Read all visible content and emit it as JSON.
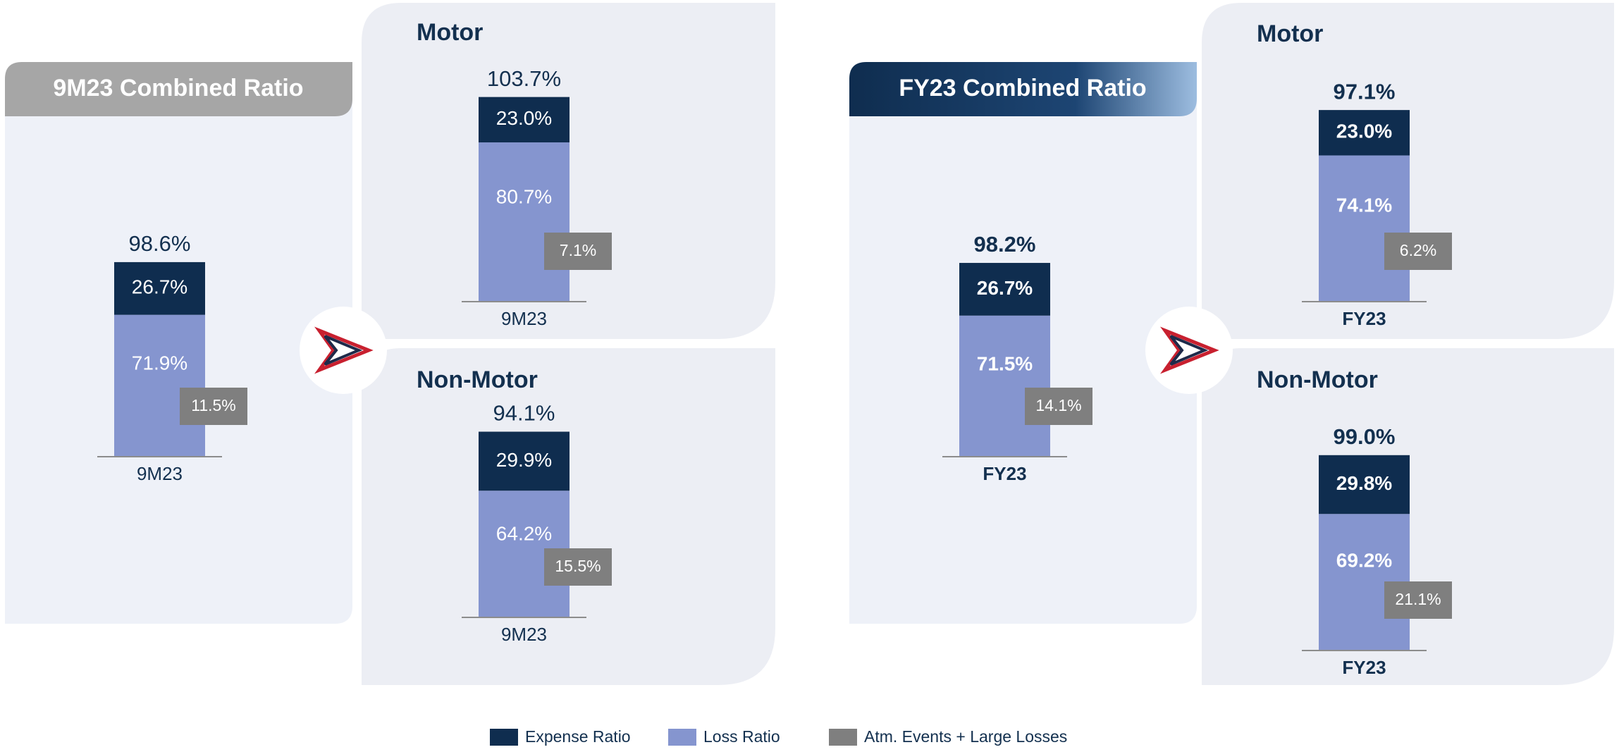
{
  "legend": [
    {
      "name": "Expense Ratio",
      "color": "#0f2d4f"
    },
    {
      "name": "Loss Ratio",
      "color": "#8595cf"
    },
    {
      "name": "Atm. Events + Large Losses",
      "color": "#7f7f7f"
    }
  ],
  "chart_data": [
    {
      "type": "bar",
      "title": "9M23 Combined Ratio",
      "categories": [
        "9M23"
      ],
      "totals": {
        "values": [
          98.6
        ],
        "value_labels": [
          "98.6%"
        ]
      },
      "series": [
        {
          "values": [
            26.7
          ],
          "value_labels": [
            "26.7%"
          ]
        },
        {
          "values": [
            71.9
          ],
          "value_labels": [
            "71.9%"
          ]
        },
        {
          "values": [
            11.5
          ],
          "value_labels": [
            "11.5%"
          ]
        }
      ]
    },
    {
      "type": "bar",
      "title": "Motor",
      "categories": [
        "9M23"
      ],
      "totals": {
        "values": [
          103.7
        ],
        "value_labels": [
          "103.7%"
        ]
      },
      "series": [
        {
          "values": [
            23.0
          ],
          "value_labels": [
            "23.0%"
          ]
        },
        {
          "values": [
            80.7
          ],
          "value_labels": [
            "80.7%"
          ]
        },
        {
          "values": [
            7.1
          ],
          "value_labels": [
            "7.1%"
          ]
        }
      ]
    },
    {
      "type": "bar",
      "title": "Non-Motor",
      "categories": [
        "9M23"
      ],
      "totals": {
        "values": [
          94.1
        ],
        "value_labels": [
          "94.1%"
        ]
      },
      "series": [
        {
          "values": [
            29.9
          ],
          "value_labels": [
            "29.9%"
          ]
        },
        {
          "values": [
            64.2
          ],
          "value_labels": [
            "64.2%"
          ]
        },
        {
          "values": [
            15.5
          ],
          "value_labels": [
            "15.5%"
          ]
        }
      ]
    },
    {
      "type": "bar",
      "title": "FY23 Combined Ratio",
      "categories": [
        "FY23"
      ],
      "totals": {
        "values": [
          98.2
        ],
        "value_labels": [
          "98.2%"
        ]
      },
      "series": [
        {
          "values": [
            26.7
          ],
          "value_labels": [
            "26.7%"
          ]
        },
        {
          "values": [
            71.5
          ],
          "value_labels": [
            "71.5%"
          ]
        },
        {
          "values": [
            14.1
          ],
          "value_labels": [
            "14.1%"
          ]
        }
      ]
    },
    {
      "type": "bar",
      "title": "Motor",
      "categories": [
        "FY23"
      ],
      "totals": {
        "values": [
          97.1
        ],
        "value_labels": [
          "97.1%"
        ]
      },
      "series": [
        {
          "values": [
            23.0
          ],
          "value_labels": [
            "23.0%"
          ]
        },
        {
          "values": [
            74.1
          ],
          "value_labels": [
            "74.1%"
          ]
        },
        {
          "values": [
            6.2
          ],
          "value_labels": [
            "6.2%"
          ]
        }
      ]
    },
    {
      "type": "bar",
      "title": "Non-Motor",
      "categories": [
        "FY23"
      ],
      "totals": {
        "values": [
          99.0
        ],
        "value_labels": [
          "99.0%"
        ]
      },
      "series": [
        {
          "values": [
            29.8
          ],
          "value_labels": [
            "29.8%"
          ]
        },
        {
          "values": [
            69.2
          ],
          "value_labels": [
            "69.2%"
          ]
        },
        {
          "values": [
            21.1
          ],
          "value_labels": [
            "21.1%"
          ]
        }
      ]
    }
  ]
}
